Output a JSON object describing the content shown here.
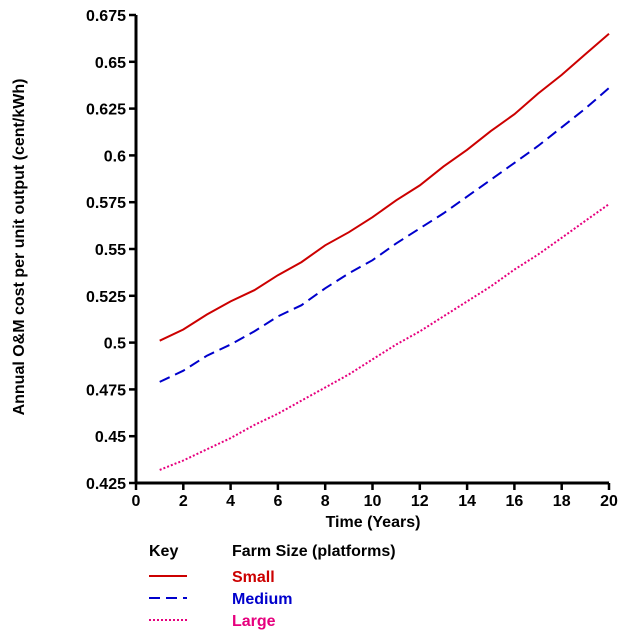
{
  "chart_data": {
    "type": "line",
    "xlabel": "Time (Years)",
    "ylabel": "Annual O&M cost per unit output (cent/kWh)",
    "xlim": [
      0,
      20
    ],
    "ylim": [
      0.425,
      0.675
    ],
    "x_ticks": [
      "0",
      "2",
      "4",
      "6",
      "8",
      "10",
      "12",
      "14",
      "16",
      "18",
      "20"
    ],
    "y_ticks": [
      "0.425",
      "0.45",
      "0.475",
      "0.5",
      "0.525",
      "0.55",
      "0.575",
      "0.6",
      "0.625",
      "0.65",
      "0.675"
    ],
    "grid": false,
    "x": [
      1,
      2,
      3,
      4,
      5,
      6,
      7,
      8,
      9,
      10,
      11,
      12,
      13,
      14,
      15,
      16,
      17,
      18,
      19,
      20
    ],
    "series": [
      {
        "name": "Small",
        "color": "#cc0000",
        "dash": "solid",
        "values": [
          0.501,
          0.507,
          0.515,
          0.522,
          0.528,
          0.536,
          0.543,
          0.552,
          0.559,
          0.567,
          0.576,
          0.584,
          0.594,
          0.603,
          0.613,
          0.622,
          0.633,
          0.643,
          0.654,
          0.665
        ]
      },
      {
        "name": "Medium",
        "color": "#0000cc",
        "dash": "dashed",
        "values": [
          0.479,
          0.485,
          0.493,
          0.499,
          0.506,
          0.514,
          0.52,
          0.529,
          0.537,
          0.544,
          0.553,
          0.561,
          0.569,
          0.578,
          0.587,
          0.596,
          0.605,
          0.615,
          0.625,
          0.636
        ]
      },
      {
        "name": "Large",
        "color": "#e6007e",
        "dash": "dotted",
        "values": [
          0.432,
          0.437,
          0.443,
          0.449,
          0.456,
          0.462,
          0.469,
          0.476,
          0.483,
          0.491,
          0.499,
          0.506,
          0.514,
          0.522,
          0.53,
          0.539,
          0.547,
          0.556,
          0.565,
          0.574
        ]
      }
    ]
  },
  "key": {
    "key_label": "Key",
    "heading": "Farm Size (platforms)"
  }
}
